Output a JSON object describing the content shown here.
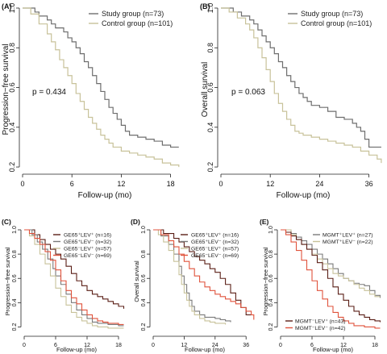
{
  "figure": {
    "background": "#ffffff"
  },
  "chart_data": [
    {
      "id": "A",
      "tag": "(A)",
      "type": "line",
      "subtype": "kaplan-meier",
      "ylabel": "Progression−free survival",
      "xlabel": "Follow-up (mo)",
      "xlim": [
        0,
        20
      ],
      "ylim": [
        0.18,
        1.0
      ],
      "xticks": [
        0,
        6,
        12,
        18
      ],
      "yticks": [
        0.2,
        0.4,
        0.6,
        0.8,
        1.0
      ],
      "ytick_labels": [
        "0.2",
        "0.4",
        "0.6",
        "0.8",
        "1.0"
      ],
      "annotation": "p = 0.434",
      "legend_position": "top-right",
      "series": [
        {
          "name": "Study group (n=73)",
          "color": "#6e6e6e",
          "x": [
            0,
            1.5,
            2,
            3,
            3.5,
            4,
            5,
            5.5,
            6,
            6.5,
            7,
            7.5,
            8,
            8.5,
            9,
            9.5,
            10,
            10.5,
            11,
            11.5,
            12,
            12.5,
            13,
            14,
            15,
            16,
            17,
            18,
            19
          ],
          "y": [
            1,
            0.98,
            0.96,
            0.94,
            0.92,
            0.9,
            0.88,
            0.85,
            0.83,
            0.8,
            0.77,
            0.73,
            0.7,
            0.66,
            0.62,
            0.58,
            0.54,
            0.5,
            0.47,
            0.44,
            0.41,
            0.38,
            0.36,
            0.35,
            0.34,
            0.33,
            0.31,
            0.3,
            0.3
          ]
        },
        {
          "name": "Control group (n=101)",
          "color": "#c8c29a",
          "x": [
            0,
            1,
            2,
            3,
            3.5,
            4,
            4.5,
            5,
            5.5,
            6,
            6.5,
            7,
            7.5,
            8,
            8.5,
            9,
            9.5,
            10,
            10.5,
            11,
            12,
            13,
            14,
            15,
            16,
            17,
            18,
            19
          ],
          "y": [
            1,
            0.97,
            0.92,
            0.87,
            0.83,
            0.79,
            0.74,
            0.7,
            0.66,
            0.62,
            0.57,
            0.53,
            0.49,
            0.45,
            0.42,
            0.39,
            0.36,
            0.34,
            0.32,
            0.3,
            0.28,
            0.27,
            0.26,
            0.25,
            0.24,
            0.22,
            0.21,
            0.2
          ]
        }
      ]
    },
    {
      "id": "B",
      "tag": "(B)",
      "type": "line",
      "subtype": "kaplan-meier",
      "ylabel": "Overall survival",
      "xlabel": "Follow-up (mo)",
      "xlim": [
        0,
        40
      ],
      "ylim": [
        0.18,
        1.0
      ],
      "xticks": [
        0,
        12,
        24,
        36
      ],
      "yticks": [
        0.2,
        0.4,
        0.6,
        0.8,
        1.0
      ],
      "ytick_labels": [
        "0.2",
        "0.4",
        "0.6",
        "0.8",
        "1.0"
      ],
      "annotation": "p = 0.063",
      "legend_position": "top-right",
      "series": [
        {
          "name": "Study group (n=73)",
          "color": "#6e6e6e",
          "x": [
            0,
            3,
            5,
            7,
            8,
            9,
            10,
            11,
            12,
            13,
            14,
            15,
            16,
            17,
            18,
            19,
            20,
            21,
            22,
            24,
            26,
            28,
            30,
            32,
            33,
            34,
            35,
            36,
            38,
            39
          ],
          "y": [
            1,
            0.98,
            0.96,
            0.94,
            0.92,
            0.89,
            0.86,
            0.83,
            0.8,
            0.77,
            0.73,
            0.7,
            0.66,
            0.63,
            0.6,
            0.57,
            0.55,
            0.53,
            0.51,
            0.5,
            0.48,
            0.45,
            0.44,
            0.42,
            0.4,
            0.38,
            0.34,
            0.3,
            0.3,
            0.3
          ]
        },
        {
          "name": "Control group (n=101)",
          "color": "#c8c29a",
          "x": [
            0,
            2,
            4,
            6,
            7,
            8,
            9,
            10,
            11,
            12,
            13,
            14,
            15,
            16,
            17,
            18,
            19,
            20,
            22,
            24,
            26,
            28,
            30,
            32,
            34,
            36,
            38,
            39
          ],
          "y": [
            1,
            0.98,
            0.95,
            0.92,
            0.89,
            0.85,
            0.8,
            0.75,
            0.69,
            0.63,
            0.57,
            0.52,
            0.48,
            0.44,
            0.41,
            0.38,
            0.37,
            0.36,
            0.35,
            0.34,
            0.33,
            0.32,
            0.31,
            0.3,
            0.28,
            0.26,
            0.24,
            0.22
          ]
        }
      ]
    },
    {
      "id": "C",
      "tag": "(C)",
      "type": "line",
      "subtype": "kaplan-meier",
      "ylabel": "Progression−free survival",
      "xlabel": "Follow-up (mo)",
      "xlim": [
        0,
        20
      ],
      "ylim": [
        0.15,
        1.0
      ],
      "xticks": [
        0,
        6,
        12,
        18
      ],
      "yticks": [
        0.2,
        0.4,
        0.6,
        0.8,
        1.0
      ],
      "ytick_labels": [
        "0.2",
        "0.4",
        "0.6",
        "0.8",
        "1.0"
      ],
      "legend_position": "top-right",
      "series": [
        {
          "name": "GE65⁺LEV⁺ (n=16)",
          "color": "#5a1e16",
          "x": [
            0,
            2,
            3,
            4,
            5,
            6,
            7,
            8,
            9,
            10,
            11,
            12,
            13,
            14,
            15,
            16,
            17,
            18,
            19
          ],
          "y": [
            1,
            0.96,
            0.92,
            0.88,
            0.84,
            0.8,
            0.76,
            0.7,
            0.64,
            0.58,
            0.54,
            0.5,
            0.47,
            0.45,
            0.43,
            0.41,
            0.39,
            0.37,
            0.35
          ]
        },
        {
          "name": "GE65⁺LEV⁻ (n=32)",
          "color": "#7a7a7a",
          "x": [
            0,
            1.5,
            2.5,
            3.5,
            4.5,
            5.5,
            6,
            7,
            8,
            9,
            10,
            11,
            12,
            13,
            14,
            16,
            18,
            19
          ],
          "y": [
            1,
            0.96,
            0.9,
            0.84,
            0.76,
            0.68,
            0.62,
            0.55,
            0.47,
            0.4,
            0.34,
            0.3,
            0.27,
            0.24,
            0.23,
            0.22,
            0.21,
            0.21
          ]
        },
        {
          "name": "GE65⁻LEV⁺ (n=57)",
          "color": "#c8c29a",
          "x": [
            0,
            1,
            2,
            3,
            4,
            5,
            6,
            7,
            8,
            9,
            10,
            11,
            12,
            13,
            14,
            16,
            18,
            19
          ],
          "y": [
            1,
            0.95,
            0.88,
            0.8,
            0.72,
            0.62,
            0.52,
            0.45,
            0.38,
            0.32,
            0.28,
            0.25,
            0.23,
            0.21,
            0.2,
            0.19,
            0.19,
            0.19
          ]
        },
        {
          "name": "GE65⁻LEV⁻ (n=69)",
          "color": "#e0533c",
          "x": [
            0,
            1,
            2,
            3,
            4,
            5,
            6,
            7,
            8,
            9,
            10,
            11,
            12,
            13,
            14,
            15,
            16,
            18,
            19
          ],
          "y": [
            1,
            0.97,
            0.93,
            0.88,
            0.82,
            0.75,
            0.67,
            0.58,
            0.5,
            0.44,
            0.39,
            0.34,
            0.3,
            0.27,
            0.25,
            0.24,
            0.23,
            0.22,
            0.22
          ]
        }
      ]
    },
    {
      "id": "D",
      "tag": "(D)",
      "type": "line",
      "subtype": "kaplan-meier",
      "ylabel": "Overall survival",
      "xlabel": "Follow-up (mo)",
      "xlim": [
        0,
        40
      ],
      "ylim": [
        0.15,
        1.0
      ],
      "xticks": [
        0,
        12,
        24,
        36
      ],
      "yticks": [
        0.2,
        0.4,
        0.6,
        0.8,
        1.0
      ],
      "ytick_labels": [
        "0.2",
        "0.4",
        "0.6",
        "0.8",
        "1.0"
      ],
      "legend_position": "top-right",
      "series": [
        {
          "name": "GE65⁺LEV⁺ (n=16)",
          "color": "#5a1e16",
          "x": [
            0,
            4,
            8,
            10,
            12,
            14,
            16,
            18,
            20,
            22,
            24,
            26,
            28,
            30,
            32,
            34,
            36,
            38
          ],
          "y": [
            1,
            0.97,
            0.93,
            0.9,
            0.86,
            0.82,
            0.78,
            0.75,
            0.72,
            0.68,
            0.65,
            0.6,
            0.55,
            0.48,
            0.42,
            0.36,
            0.3,
            0.3
          ]
        },
        {
          "name": "GE65⁺LEV⁻ (n=32)",
          "color": "#7a7a7a",
          "x": [
            0,
            3,
            6,
            8,
            10,
            11,
            12,
            13,
            14,
            15,
            16,
            18,
            20,
            24,
            26,
            28,
            30
          ],
          "y": [
            1,
            0.95,
            0.88,
            0.8,
            0.7,
            0.62,
            0.55,
            0.48,
            0.42,
            0.37,
            0.33,
            0.3,
            0.28,
            0.27,
            0.26,
            0.25,
            0.24
          ]
        },
        {
          "name": "GE65⁻LEV⁺ (n=57)",
          "color": "#c8c29a",
          "x": [
            0,
            2,
            4,
            6,
            8,
            10,
            11,
            12,
            13,
            14,
            15,
            16,
            18,
            20,
            22,
            24,
            28
          ],
          "y": [
            1,
            0.96,
            0.9,
            0.83,
            0.74,
            0.63,
            0.55,
            0.48,
            0.42,
            0.37,
            0.33,
            0.3,
            0.27,
            0.25,
            0.24,
            0.23,
            0.22
          ]
        },
        {
          "name": "GE65⁻LEV⁻ (n=69)",
          "color": "#e0533c",
          "x": [
            0,
            3,
            6,
            8,
            10,
            12,
            14,
            16,
            18,
            20,
            22,
            24,
            26,
            28,
            30,
            32,
            34,
            36,
            38,
            39
          ],
          "y": [
            1,
            0.96,
            0.91,
            0.86,
            0.8,
            0.74,
            0.68,
            0.62,
            0.57,
            0.53,
            0.5,
            0.47,
            0.45,
            0.43,
            0.41,
            0.39,
            0.36,
            0.33,
            0.3,
            0.26
          ]
        }
      ]
    },
    {
      "id": "E",
      "tag": "(E)",
      "type": "line",
      "subtype": "kaplan-meier",
      "ylabel": "Progression−free survival",
      "xlabel": "Follow-up (mo)",
      "xlim": [
        0,
        20
      ],
      "ylim": [
        0.15,
        1.0
      ],
      "xticks": [
        0,
        6,
        12,
        18
      ],
      "yticks": [
        0.2,
        0.4,
        0.6,
        0.8,
        1.0
      ],
      "ytick_labels": [
        "0.2",
        "0.4",
        "0.6",
        "0.8",
        "1.0"
      ],
      "legend_top_position": "top-right",
      "legend_bottom_position": "bottom-left",
      "series": [
        {
          "name": "MGMT⁺LEV⁺ (n=27)",
          "color": "#7a7a7a",
          "legend": "top",
          "x": [
            0,
            2,
            3,
            4,
            5,
            6,
            7,
            8,
            9,
            10,
            11,
            12,
            13,
            14,
            15,
            16,
            17,
            18,
            19
          ],
          "y": [
            1,
            0.97,
            0.94,
            0.91,
            0.88,
            0.84,
            0.8,
            0.76,
            0.72,
            0.68,
            0.64,
            0.6,
            0.58,
            0.56,
            0.55,
            0.54,
            0.5,
            0.46,
            0.44
          ]
        },
        {
          "name": "MGMT⁺LEV⁻ (n=22)",
          "color": "#c8c29a",
          "legend": "top",
          "x": [
            0,
            2,
            3,
            4,
            5,
            6,
            7,
            8,
            9,
            10,
            11,
            12,
            13,
            14,
            15,
            16,
            17,
            18,
            19
          ],
          "y": [
            1,
            0.96,
            0.92,
            0.88,
            0.84,
            0.8,
            0.76,
            0.72,
            0.68,
            0.64,
            0.62,
            0.6,
            0.58,
            0.55,
            0.52,
            0.5,
            0.47,
            0.45,
            0.45
          ]
        },
        {
          "name": "MGMT⁻LEV⁺ (n=43)",
          "color": "#5a1e16",
          "legend": "bottom",
          "x": [
            0,
            1,
            2,
            3,
            4,
            5,
            6,
            7,
            8,
            9,
            10,
            11,
            12,
            13,
            14,
            15,
            16,
            17,
            18,
            19
          ],
          "y": [
            1,
            0.98,
            0.95,
            0.92,
            0.88,
            0.84,
            0.79,
            0.73,
            0.67,
            0.6,
            0.53,
            0.47,
            0.42,
            0.37,
            0.33,
            0.3,
            0.28,
            0.26,
            0.25,
            0.24
          ]
        },
        {
          "name": "MGMT⁻LEV⁻ (n=42)",
          "color": "#e0533c",
          "legend": "bottom",
          "x": [
            0,
            1,
            2,
            3,
            4,
            5,
            6,
            7,
            8,
            9,
            10,
            11,
            12,
            13,
            14,
            16,
            18,
            19
          ],
          "y": [
            1,
            0.96,
            0.9,
            0.83,
            0.75,
            0.67,
            0.58,
            0.5,
            0.43,
            0.37,
            0.32,
            0.28,
            0.25,
            0.23,
            0.21,
            0.2,
            0.19,
            0.19
          ]
        }
      ]
    }
  ]
}
